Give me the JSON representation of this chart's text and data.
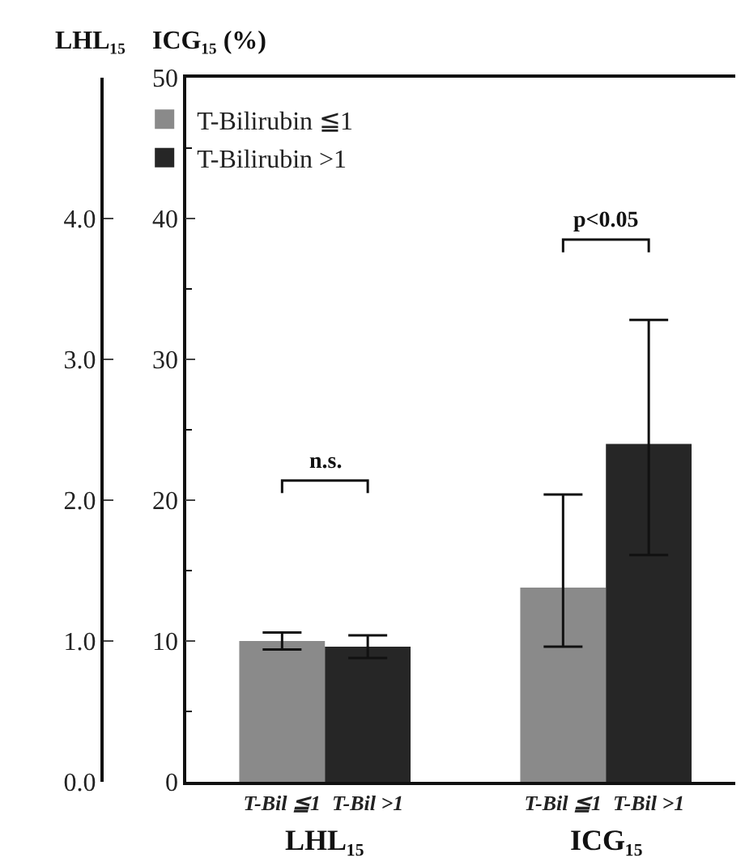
{
  "chart_data": {
    "type": "bar",
    "ylabel": "LHL₁₅",
    "y2label": "ICG₁₅ (%)",
    "categories": [
      "T-Bil ≦1",
      "T-Bil >1",
      "T-Bil ≦1",
      "T-Bil >1"
    ],
    "series": [
      {
        "name": "T-Bilirubin ≦1",
        "color": "#8a8a8a",
        "values": [
          1.0,
          null,
          null,
          null
        ],
        "errors": [
          0.06,
          null,
          null,
          null
        ]
      },
      {
        "name": "T-Bilirubin >1",
        "color": "#262626",
        "values": [
          null,
          0.96,
          null,
          null
        ],
        "errors": [
          null,
          0.08,
          null,
          null
        ]
      },
      {
        "color": "#8a8a8a",
        "axis": "y2",
        "values": [
          null,
          null,
          13.8,
          null
        ],
        "errors": [
          null,
          null,
          [
            9.6,
            20.4
          ],
          null
        ]
      },
      {
        "color": "#262626",
        "axis": "y2",
        "values": [
          null,
          null,
          null,
          24.0
        ],
        "errors": [
          null,
          null,
          null,
          [
            16.1,
            32.8
          ]
        ]
      }
    ],
    "ylim": [
      0,
      5
    ],
    "yticks": [
      {
        "value": 0,
        "label": "0.0"
      },
      {
        "value": 1,
        "label": "1.0"
      },
      {
        "value": 2,
        "label": "2.0"
      },
      {
        "value": 3,
        "label": "3.0"
      },
      {
        "value": 4,
        "label": "4.0"
      }
    ],
    "y2lim": [
      0,
      50
    ],
    "y2ticks": [
      0,
      {
        "value": 5,
        "label": null
      },
      10,
      {
        "value": 15,
        "label": null
      },
      20,
      {
        "value": 25,
        "label": null
      },
      30,
      {
        "value": 35,
        "label": null
      },
      40,
      {
        "value": 45,
        "label": null
      },
      50
    ],
    "annotations": [
      "n.s.",
      "p<0.05",
      "LHL₁₅",
      "ICG₁₅"
    ],
    "legend": "top left",
    "grid": false
  }
}
